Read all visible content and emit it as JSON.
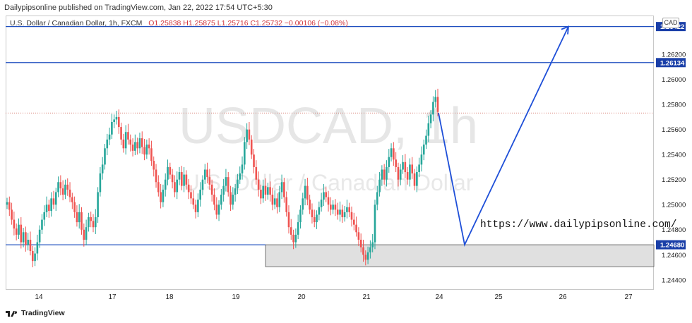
{
  "header": {
    "publisher_line": "Dailypipsonline published on TradingView.com, Jan 22, 2022 17:54 UTC+5:30",
    "symbol_line": "U.S. Dollar / Canadian Dollar, 1h, FXCM",
    "ohlc_line": "O1.25838  H1.25875  L1.25716  C1.25732  −0.00106 (−0.08%)",
    "currency_badge": "CAD"
  },
  "footer": {
    "brand": "TradingView"
  },
  "watermark": {
    "symbol": "USDCAD, 1h",
    "name": "U.S. Dollar / Canadian Dollar"
  },
  "annotation": {
    "url_text": "https://www.dailypipsonline.com/"
  },
  "colors": {
    "up": "#26a69a",
    "down": "#ef5350",
    "level_line": "#1f4fbf",
    "drawing": "#1e4fd8",
    "zone_fill": "#e0e0e0",
    "price_label_bg": "#1a3fa8"
  },
  "chart_data": {
    "type": "candlestick",
    "ylim": [
      1.2432,
      1.2651
    ],
    "y_ticks": [
      "1.26200",
      "1.26000",
      "1.25800",
      "1.25600",
      "1.25400",
      "1.25200",
      "1.25000",
      "1.24800",
      "1.24600",
      "1.24400"
    ],
    "x_ticks": [
      "14",
      "17",
      "18",
      "19",
      "20",
      "21",
      "24",
      "25",
      "26",
      "27"
    ],
    "price_labels": [
      "1.26422",
      "1.26134",
      "1.24680"
    ],
    "horizontal_levels": [
      1.26422,
      1.26134,
      1.2468
    ],
    "last_close": 1.25732,
    "support_zone": {
      "from_x": "19",
      "to_x": "right edge",
      "low": 1.24505,
      "high": 1.2468
    },
    "projection_path": [
      {
        "x": "24",
        "y": 1.25732
      },
      {
        "x": "24-25",
        "y": 1.2468
      },
      {
        "x": "26",
        "y": 1.26422
      }
    ],
    "candles_close": [
      1.2502,
      1.2496,
      1.2488,
      1.2481,
      1.2476,
      1.2484,
      1.247,
      1.2478,
      1.2468,
      1.2472,
      1.2463,
      1.2455,
      1.2461,
      1.247,
      1.248,
      1.2488,
      1.2494,
      1.25,
      1.2495,
      1.2505,
      1.25,
      1.251,
      1.2518,
      1.2513,
      1.2508,
      1.2516,
      1.2512,
      1.2506,
      1.2502,
      1.2494,
      1.2486,
      1.2494,
      1.248,
      1.2472,
      1.2482,
      1.249,
      1.2487,
      1.2482,
      1.249,
      1.251,
      1.2525,
      1.2532,
      1.2545,
      1.2552,
      1.2556,
      1.2566,
      1.2568,
      1.257,
      1.2562,
      1.2552,
      1.2545,
      1.2558,
      1.2552,
      1.2548,
      1.2543,
      1.255,
      1.2545,
      1.2553,
      1.2546,
      1.254,
      1.2548,
      1.2545,
      1.2535,
      1.2528,
      1.2518,
      1.251,
      1.2502,
      1.2512,
      1.252,
      1.253,
      1.2524,
      1.2518,
      1.251,
      1.252,
      1.2526,
      1.2515,
      1.2524,
      1.2516,
      1.251,
      1.2505,
      1.25,
      1.2494,
      1.2504,
      1.2512,
      1.252,
      1.2528,
      1.2522,
      1.2516,
      1.2508,
      1.25,
      1.2492,
      1.25,
      1.2508,
      1.2515,
      1.2522,
      1.251,
      1.25,
      1.2508,
      1.2513,
      1.252,
      1.2525,
      1.2532,
      1.255,
      1.256,
      1.2552,
      1.254,
      1.253,
      1.252,
      1.2512,
      1.2505,
      1.2515,
      1.2508,
      1.2514,
      1.2508,
      1.25,
      1.2505,
      1.2498,
      1.251,
      1.2518,
      1.2506,
      1.2494,
      1.2482,
      1.2476,
      1.247,
      1.2476,
      1.2486,
      1.2496,
      1.2505,
      1.2515,
      1.2504,
      1.2496,
      1.249,
      1.2486,
      1.2492,
      1.2498,
      1.2504,
      1.251,
      1.2506,
      1.25,
      1.2496,
      1.25,
      1.2496,
      1.2492,
      1.2496,
      1.249,
      1.2494,
      1.2498,
      1.2494,
      1.2488,
      1.2484,
      1.2478,
      1.2472,
      1.2466,
      1.246,
      1.2456,
      1.2462,
      1.2466,
      1.247,
      1.25,
      1.251,
      1.252,
      1.2528,
      1.252,
      1.253,
      1.2538,
      1.2545,
      1.2536,
      1.253,
      1.252,
      1.2528,
      1.2534,
      1.2526,
      1.252,
      1.2532,
      1.2525,
      1.2515,
      1.2526,
      1.2532,
      1.254,
      1.2548,
      1.2555,
      1.2565,
      1.2572,
      1.2582,
      1.2586,
      1.2574
    ]
  }
}
